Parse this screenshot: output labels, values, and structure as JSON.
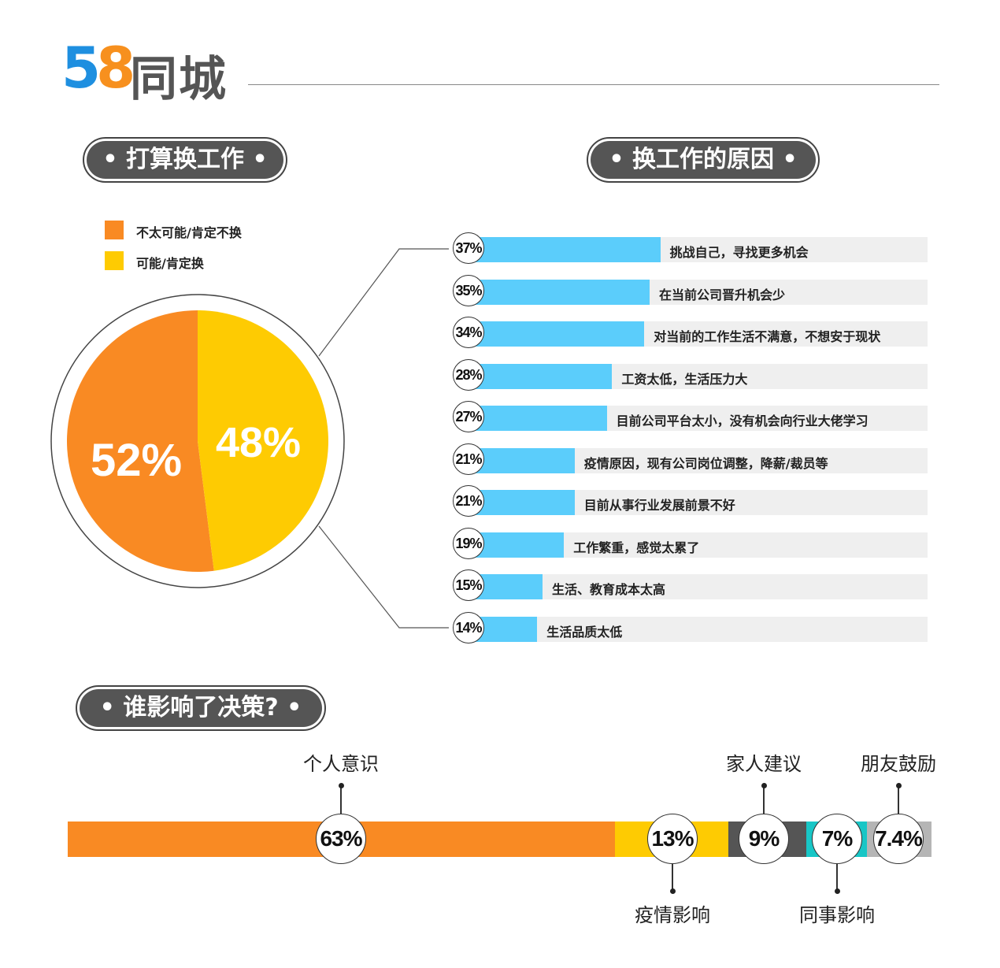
{
  "brand": {
    "logo_digits": "58",
    "logo_text": "同城",
    "colors": {
      "5_red": "#ee3a3a",
      "5_blue": "#1e8fe0",
      "8_green": "#4ab52b",
      "8_orange": "#f7901e"
    }
  },
  "chart_data": [
    {
      "type": "pie",
      "title": "• 打算换工作 •",
      "slices": [
        {
          "label": "不太可能/肯定不换",
          "value": 52,
          "display": "52%",
          "color": "#f98a23"
        },
        {
          "label": "可能/肯定换",
          "value": 48,
          "display": "48%",
          "color": "#fecb02"
        }
      ],
      "legend": "top-left"
    },
    {
      "type": "bar",
      "title": "• 换工作的原因 •",
      "orientation": "horizontal",
      "xlim": [
        0,
        100
      ],
      "color": "#5bcdfb",
      "categories": [
        "挑战自己，寻找更多机会",
        "在当前公司晋升机会少",
        "对当前的工作生活不满意，不想安于现状",
        "工资太低，生活压力大",
        "目前公司平台太小，没有机会向行业大佬学习",
        "疫情原因，现有公司岗位调整，降薪/裁员等",
        "目前从事行业发展前景不好",
        "工作繁重，感觉太累了",
        "生活、教育成本太高",
        "生活品质太低"
      ],
      "values": [
        37,
        35,
        34,
        28,
        27,
        21,
        21,
        19,
        15,
        14
      ],
      "labels": [
        "37%",
        "35%",
        "34%",
        "28%",
        "27%",
        "21%",
        "21%",
        "19%",
        "15%",
        "14%"
      ]
    },
    {
      "type": "bar",
      "title": "• 谁影响了决策? •",
      "orientation": "stacked-horizontal",
      "segments": [
        {
          "label": "个人意识",
          "value": 63,
          "display": "63%",
          "color": "#f98a23",
          "label_pos": "top"
        },
        {
          "label": "疫情影响",
          "value": 13,
          "display": "13%",
          "color": "#fecb02",
          "label_pos": "bottom"
        },
        {
          "label": "家人建议",
          "value": 9,
          "display": "9%",
          "color": "#555555",
          "label_pos": "top"
        },
        {
          "label": "同事影响",
          "value": 7,
          "display": "7%",
          "color": "#18c6c6",
          "label_pos": "bottom"
        },
        {
          "label": "朋友鼓励",
          "value": 7.4,
          "display": "7.4%",
          "color": "#b5b5b5",
          "label_pos": "top"
        }
      ]
    }
  ]
}
